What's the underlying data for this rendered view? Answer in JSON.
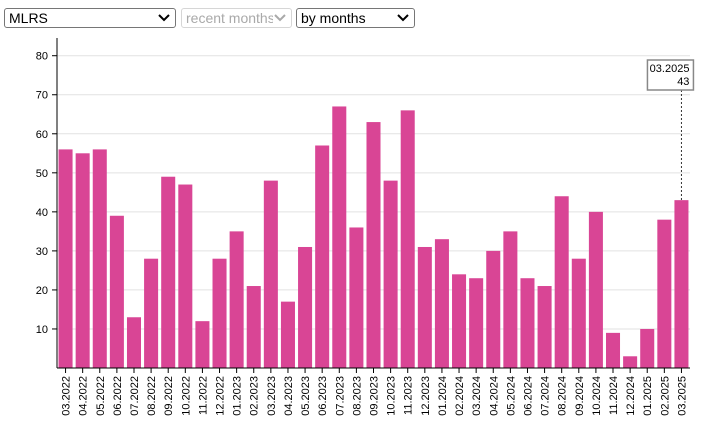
{
  "selectors": {
    "indicator": "MLRS",
    "period": "recent months",
    "grouping": "by months"
  },
  "colors": {
    "bar": "#d94595",
    "grid": "#e2e2e2",
    "axis": "#000000"
  },
  "tooltip": {
    "label": "03.2025",
    "value": "43"
  },
  "chart_data": {
    "type": "bar",
    "categories": [
      "03.2022",
      "04.2022",
      "05.2022",
      "06.2022",
      "07.2022",
      "08.2022",
      "09.2022",
      "10.2022",
      "11.2022",
      "12.2022",
      "01.2023",
      "02.2023",
      "03.2023",
      "04.2023",
      "05.2023",
      "06.2023",
      "07.2023",
      "08.2023",
      "09.2023",
      "10.2023",
      "11.2023",
      "12.2023",
      "01.2024",
      "02.2024",
      "03.2024",
      "04.2024",
      "05.2024",
      "06.2024",
      "07.2024",
      "08.2024",
      "09.2024",
      "10.2024",
      "11.2024",
      "12.2024",
      "01.2025",
      "02.2025",
      "03.2025"
    ],
    "values": [
      56,
      55,
      56,
      39,
      13,
      28,
      49,
      47,
      12,
      28,
      35,
      21,
      48,
      17,
      31,
      57,
      67,
      36,
      63,
      48,
      66,
      31,
      33,
      24,
      23,
      30,
      35,
      23,
      21,
      44,
      28,
      40,
      9,
      3,
      10,
      38,
      43
    ],
    "ylim": [
      0,
      83
    ],
    "yticks": [
      10,
      20,
      30,
      40,
      50,
      60,
      70,
      80
    ],
    "grid": true,
    "title": "",
    "xlabel": "",
    "ylabel": ""
  }
}
